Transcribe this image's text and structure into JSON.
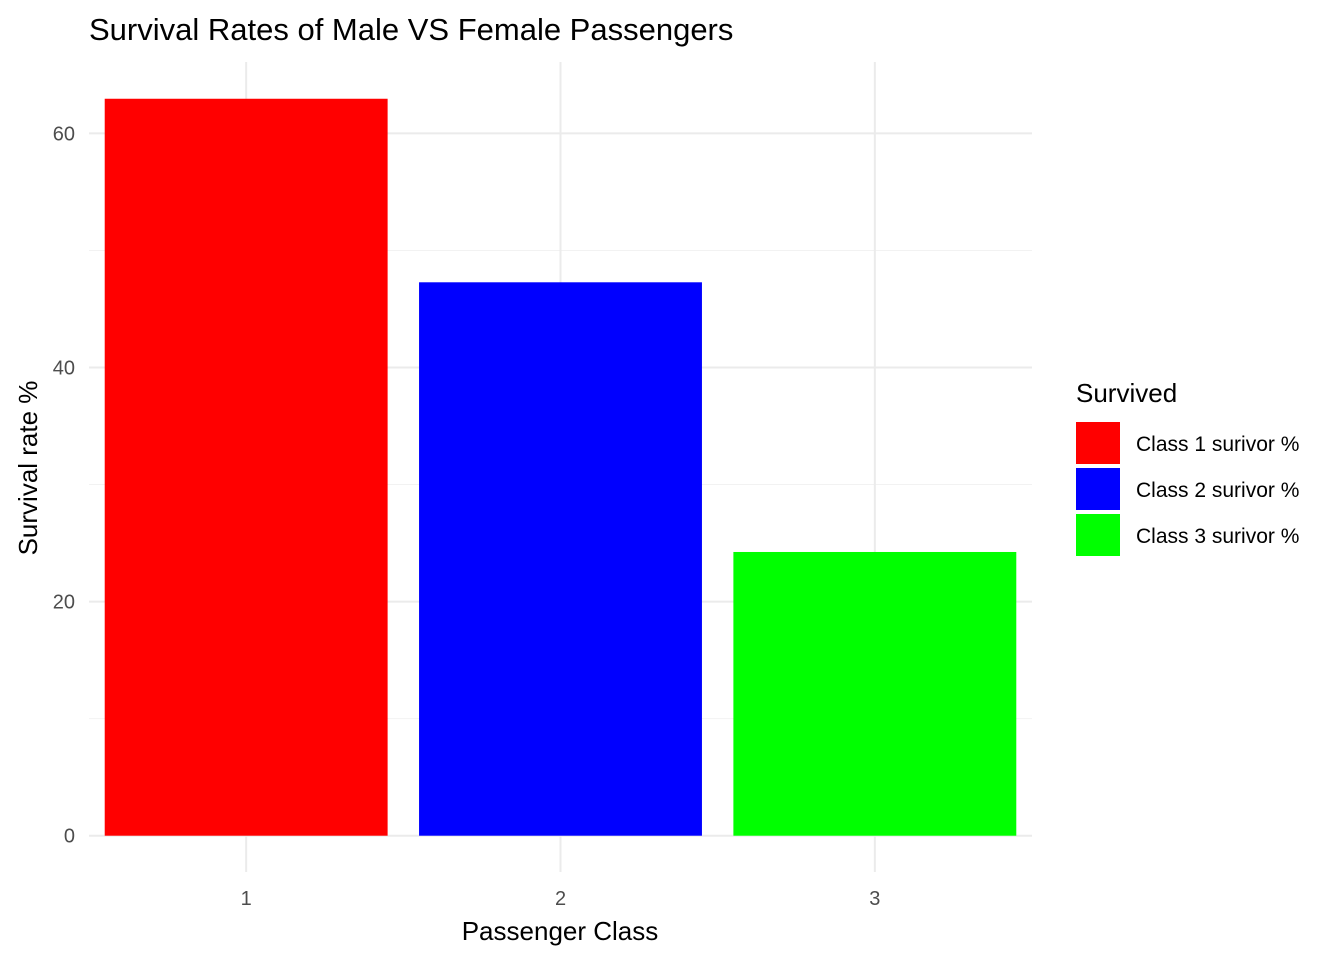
{
  "chart_data": {
    "type": "bar",
    "title": "Survival Rates of Male VS Female Passengers",
    "xlabel": "Passenger Class",
    "ylabel": "Survival rate %",
    "categories": [
      "1",
      "2",
      "3"
    ],
    "values": [
      62.96,
      47.28,
      24.24
    ],
    "ylim": [
      -3.1,
      66.1
    ],
    "yticks": [
      0,
      20,
      40,
      60
    ],
    "grid": true,
    "legend": {
      "title": "Survived",
      "placement": "right",
      "entries": [
        {
          "label": "Class 1 surivor %",
          "color": "#ff0000"
        },
        {
          "label": "Class 2 surivor %",
          "color": "#0000ff"
        },
        {
          "label": "Class 3 surivor %",
          "color": "#00ff00"
        }
      ]
    },
    "colors": [
      "#ff0000",
      "#0000ff",
      "#00ff00"
    ]
  }
}
